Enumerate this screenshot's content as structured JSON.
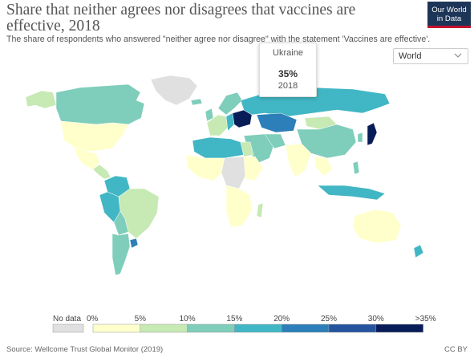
{
  "header": {
    "title": "Share that neither agrees nor disagrees that vaccines are effective, 2018",
    "subtitle": "The share of respondents who answered \"neither agree nor disagree\" with the statement 'Vaccines are effective'."
  },
  "logo": {
    "line1": "Our World",
    "line2": "in Data",
    "bg_color": "#1d3557",
    "accent_color": "#c4122f"
  },
  "region_select": {
    "value": "World",
    "icon": "chevron-down-icon"
  },
  "tooltip": {
    "country": "Ukraine",
    "value": "35%",
    "year": "2018"
  },
  "legend": {
    "no_data_label": "No data",
    "no_data_color": "#e0e0e0",
    "bins": [
      {
        "color": "#ffffcc"
      },
      {
        "color": "#c7e9b4"
      },
      {
        "color": "#7fcdbb"
      },
      {
        "color": "#41b6c4"
      },
      {
        "color": "#2c7fb8"
      },
      {
        "color": "#25549e"
      },
      {
        "color": "#081d58"
      }
    ],
    "tick_labels": [
      "0%",
      "5%",
      "10%",
      "15%",
      "20%",
      "25%",
      "30%",
      ">35%"
    ]
  },
  "map_colors": {
    "ocean": "#ffffff",
    "no_data": "#e0e0e0",
    "border": "#ffffff"
  },
  "footer": {
    "source": "Source: Wellcome Trust Global Monitor (2019)",
    "license": "CC BY"
  }
}
